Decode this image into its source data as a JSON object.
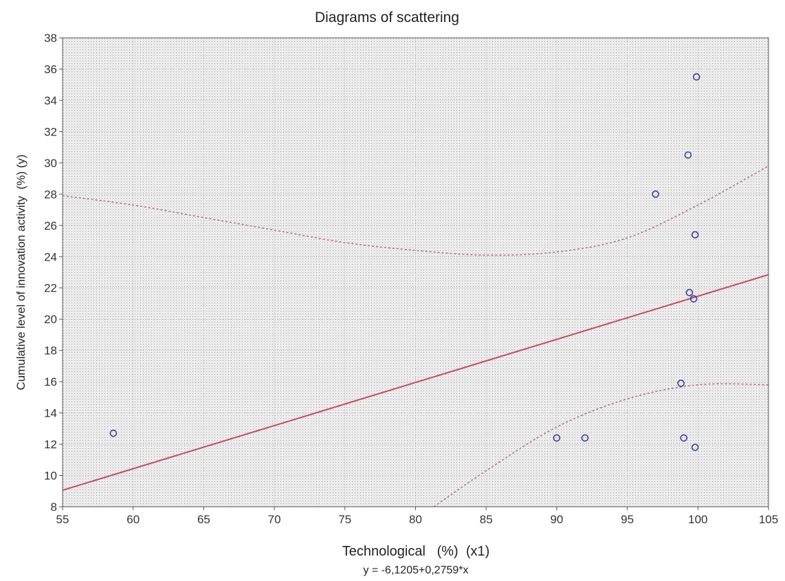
{
  "chart_data": {
    "type": "scatter",
    "title": "Diagrams of scattering",
    "xlabel": "Technological   (%)  (x1)",
    "ylabel": "Cumulative level of innovation activity  (%) (y)",
    "equation": "y = -6,1205+0,2759*x",
    "xlim": [
      55,
      105
    ],
    "ylim": [
      8,
      38
    ],
    "xticks": [
      55,
      60,
      65,
      70,
      75,
      80,
      85,
      90,
      95,
      100,
      105
    ],
    "yticks": [
      8,
      10,
      12,
      14,
      16,
      18,
      20,
      22,
      24,
      26,
      28,
      30,
      32,
      34,
      36,
      38
    ],
    "grid": true,
    "points": [
      {
        "x": 58.6,
        "y": 12.7
      },
      {
        "x": 90.0,
        "y": 12.4
      },
      {
        "x": 92.0,
        "y": 12.4
      },
      {
        "x": 97.0,
        "y": 28.0
      },
      {
        "x": 98.8,
        "y": 15.9
      },
      {
        "x": 99.0,
        "y": 12.4
      },
      {
        "x": 99.3,
        "y": 30.5
      },
      {
        "x": 99.4,
        "y": 21.7
      },
      {
        "x": 99.7,
        "y": 21.3
      },
      {
        "x": 99.8,
        "y": 25.4
      },
      {
        "x": 99.8,
        "y": 11.8
      },
      {
        "x": 99.9,
        "y": 35.5
      }
    ],
    "regression": {
      "intercept": -6.1205,
      "slope": 0.2759
    },
    "confidence_upper": [
      {
        "x": 55,
        "y": 27.9
      },
      {
        "x": 60,
        "y": 27.3
      },
      {
        "x": 65,
        "y": 26.5
      },
      {
        "x": 70,
        "y": 25.7
      },
      {
        "x": 75,
        "y": 24.9
      },
      {
        "x": 80,
        "y": 24.4
      },
      {
        "x": 85,
        "y": 24.1
      },
      {
        "x": 90,
        "y": 24.3
      },
      {
        "x": 95,
        "y": 25.2
      },
      {
        "x": 100,
        "y": 27.3
      },
      {
        "x": 105,
        "y": 29.8
      }
    ],
    "confidence_lower": [
      {
        "x": 81.3,
        "y": 8.0
      },
      {
        "x": 85,
        "y": 10.3
      },
      {
        "x": 90,
        "y": 13.1
      },
      {
        "x": 95,
        "y": 14.9
      },
      {
        "x": 100,
        "y": 15.8
      },
      {
        "x": 105,
        "y": 15.8
      }
    ],
    "colors": {
      "plot_bg": "#ececec",
      "grid": "#9a9a9a",
      "fit_line": "#c8485a",
      "confidence": "#b8737d",
      "marker": "#3a3f9e",
      "frame": "#555555"
    }
  }
}
